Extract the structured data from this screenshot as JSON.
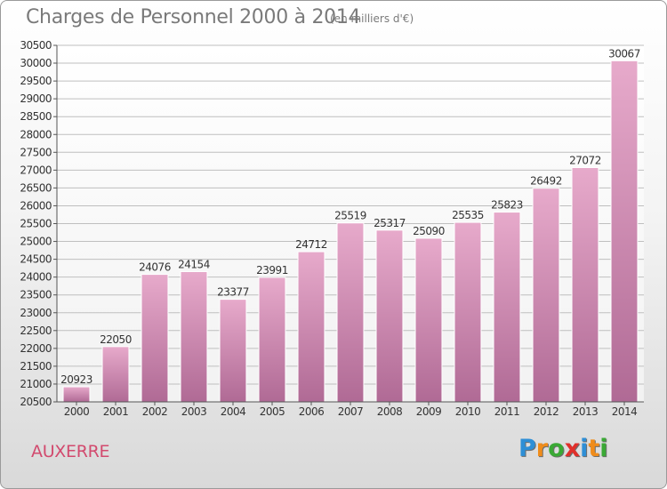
{
  "header": {
    "title": "Charges de Personnel 2000 à 2014",
    "subtitle": "(en milliers d'€)"
  },
  "footer": {
    "city": "AUXERRE",
    "logo": [
      "P",
      "r",
      "o",
      "x",
      "i",
      "t",
      "i"
    ],
    "logo_colors": [
      "#2e8fd6",
      "#f08c1a",
      "#3aa935",
      "#e0302b",
      "#2e8fd6",
      "#f08c1a",
      "#3aa935"
    ]
  },
  "colors": {
    "bar_top": "#e7aacb",
    "bar_bottom": "#b06a95",
    "city_text": "#d24a6e",
    "grid": "#bfbfbf"
  },
  "chart_data": {
    "type": "bar",
    "title": "Charges de Personnel 2000 à 2014",
    "subtitle": "(en milliers d'€)",
    "categories": [
      "2000",
      "2001",
      "2002",
      "2003",
      "2004",
      "2005",
      "2006",
      "2007",
      "2008",
      "2009",
      "2010",
      "2011",
      "2012",
      "2013",
      "2014"
    ],
    "values": [
      20923,
      22050,
      24076,
      24154,
      23377,
      23991,
      24712,
      25519,
      25317,
      25090,
      25535,
      25823,
      26492,
      27072,
      30067
    ],
    "ylim": [
      20500,
      30500
    ],
    "ytick_step": 500,
    "grid": true,
    "data_labels": true
  }
}
